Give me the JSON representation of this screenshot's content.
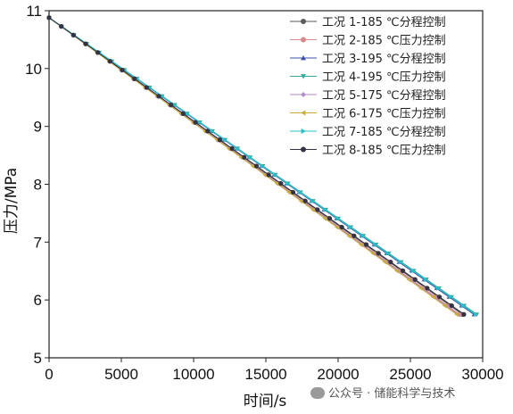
{
  "chart_data": {
    "type": "line",
    "title": "",
    "xlabel": "时间/s",
    "ylabel": "压力/MPa",
    "xlim": [
      0,
      30000
    ],
    "ylim": [
      5,
      11
    ],
    "x_ticks": [
      0,
      5000,
      10000,
      15000,
      20000,
      25000,
      30000
    ],
    "y_ticks": [
      5,
      6,
      7,
      8,
      9,
      10,
      11
    ],
    "grid": false,
    "legend_position": "top-right",
    "series": [
      {
        "name": "工况 1-185 ℃分程控制",
        "color": "#5a5a5a",
        "marker": "circle",
        "x": [
          0,
          28600
        ],
        "y": [
          10.88,
          5.75
        ]
      },
      {
        "name": "工况 2-185 ℃压力控制",
        "color": "#d98a8a",
        "marker": "circle",
        "x": [
          0,
          28400
        ],
        "y": [
          10.88,
          5.75
        ]
      },
      {
        "name": "工况 3-195 ℃分程控制",
        "color": "#3a4fb0",
        "marker": "triangle-up",
        "x": [
          0,
          29400
        ],
        "y": [
          10.88,
          5.75
        ]
      },
      {
        "name": "工况 4-195 ℃压力控制",
        "color": "#3aa89a",
        "marker": "triangle-down",
        "x": [
          0,
          29600
        ],
        "y": [
          10.88,
          5.75
        ]
      },
      {
        "name": "工况 5-175 ℃分程控制",
        "color": "#b58ac8",
        "marker": "diamond",
        "x": [
          0,
          28300
        ],
        "y": [
          10.88,
          5.75
        ]
      },
      {
        "name": "工况 6-175 ℃压力控制",
        "color": "#c9ad3a",
        "marker": "triangle-left",
        "x": [
          0,
          28200
        ],
        "y": [
          10.88,
          5.75
        ]
      },
      {
        "name": "工况 7-185 ℃分程控制",
        "color": "#2ac0c8",
        "marker": "triangle-right",
        "x": [
          0,
          29500
        ],
        "y": [
          10.88,
          5.75
        ]
      },
      {
        "name": "工况 8-185 ℃压力控制",
        "color": "#333344",
        "marker": "circle",
        "x": [
          0,
          28700
        ],
        "y": [
          10.88,
          5.75
        ]
      }
    ]
  },
  "watermark": {
    "text": "公众号 · 储能科学与技术",
    "icon": "wechat-icon"
  }
}
